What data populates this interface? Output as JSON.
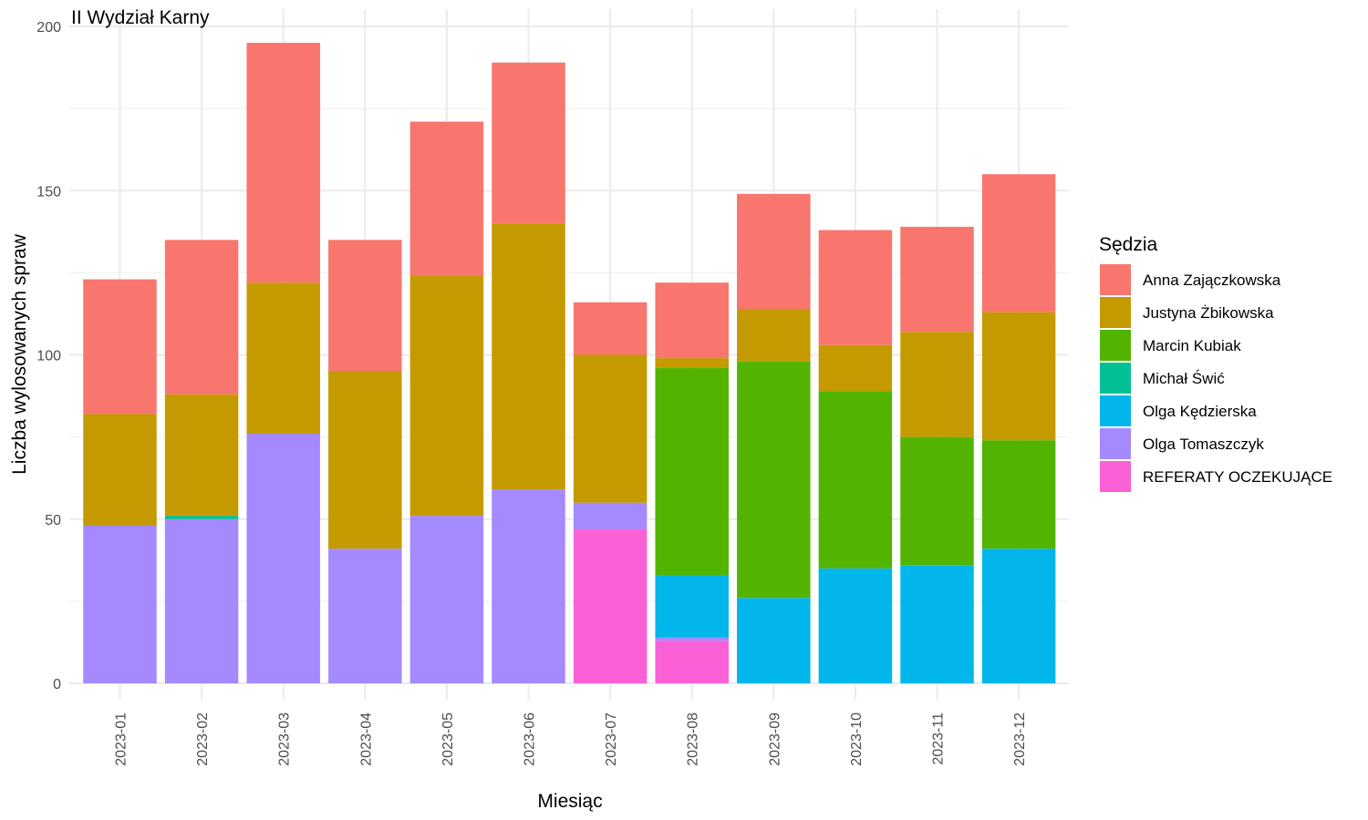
{
  "chart_data": {
    "type": "bar",
    "stacked": true,
    "title": "II Wydział Karny",
    "xlabel": "Miesiąc",
    "ylabel": "Liczba wylosowanych spraw",
    "ylim": [
      0,
      200
    ],
    "yticks": [
      "0",
      "50",
      "100",
      "150",
      "200"
    ],
    "grid": true,
    "legend_title": "Sędzia",
    "legend_position": "right",
    "categories": [
      "2023-01",
      "2023-02",
      "2023-03",
      "2023-04",
      "2023-05",
      "2023-06",
      "2023-07",
      "2023-08",
      "2023-09",
      "2023-10",
      "2023-11",
      "2023-12"
    ],
    "series": [
      {
        "name": "REFERATY OCZEKUJĄCE",
        "color": "#FB61D7",
        "values": [
          0,
          0,
          0,
          0,
          0,
          0,
          47,
          13,
          0,
          0,
          0,
          0
        ]
      },
      {
        "name": "Olga Tomaszczyk",
        "color": "#A58AFF",
        "values": [
          48,
          50,
          76,
          41,
          51,
          59,
          8,
          1,
          0,
          0,
          0,
          0
        ]
      },
      {
        "name": "Olga Kędzierska",
        "color": "#00B6EB",
        "values": [
          0,
          0,
          0,
          0,
          0,
          0,
          0,
          19,
          26,
          35,
          36,
          41
        ]
      },
      {
        "name": "Michał Świć",
        "color": "#00C094",
        "values": [
          0,
          1,
          0,
          0,
          0,
          0,
          0,
          0,
          0,
          0,
          0,
          0
        ]
      },
      {
        "name": "Marcin Kubiak",
        "color": "#53B400",
        "values": [
          0,
          0,
          0,
          0,
          0,
          0,
          0,
          63,
          72,
          54,
          39,
          33
        ]
      },
      {
        "name": "Justyna Żbikowska",
        "color": "#C49A00",
        "values": [
          34,
          37,
          46,
          54,
          73,
          81,
          45,
          3,
          16,
          14,
          32,
          39
        ]
      },
      {
        "name": "Anna Zajączkowska",
        "color": "#F8766D",
        "values": [
          41,
          47,
          73,
          40,
          47,
          49,
          16,
          23,
          35,
          35,
          32,
          42
        ]
      }
    ],
    "legend_order": [
      "Anna Zajączkowska",
      "Justyna Żbikowska",
      "Marcin Kubiak",
      "Michał Świć",
      "Olga Kędzierska",
      "Olga Tomaszczyk",
      "REFERATY OCZEKUJĄCE"
    ]
  }
}
